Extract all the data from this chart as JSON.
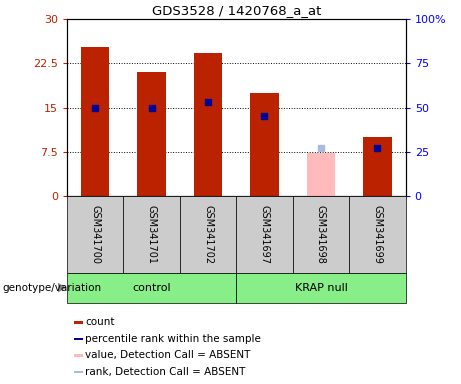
{
  "title": "GDS3528 / 1420768_a_at",
  "samples": [
    "GSM341700",
    "GSM341701",
    "GSM341702",
    "GSM341697",
    "GSM341698",
    "GSM341699"
  ],
  "count_values": [
    25.2,
    21.0,
    24.2,
    17.5,
    null,
    10.0
  ],
  "count_absent_values": [
    null,
    null,
    null,
    null,
    7.2,
    null
  ],
  "percentile_values": [
    50,
    50,
    53,
    45,
    null,
    27
  ],
  "percentile_absent_values": [
    null,
    null,
    null,
    null,
    27,
    null
  ],
  "groups": [
    {
      "label": "control",
      "start": 0,
      "end": 2
    },
    {
      "label": "KRAP null",
      "start": 3,
      "end": 5
    }
  ],
  "ylim_left": [
    0,
    30
  ],
  "ylim_right": [
    0,
    100
  ],
  "yticks_left": [
    0,
    7.5,
    15,
    22.5,
    30
  ],
  "yticks_right": [
    0,
    25,
    50,
    75,
    100
  ],
  "ytick_labels_left": [
    "0",
    "7.5",
    "15",
    "22.5",
    "30"
  ],
  "ytick_labels_right": [
    "0",
    "25",
    "50",
    "75",
    "100%"
  ],
  "bar_color_red": "#bb2200",
  "bar_color_pink": "#ffbbbb",
  "marker_color_blue": "#000099",
  "marker_color_bluelight": "#aabbdd",
  "bar_width": 0.5,
  "group_bar_color": "#88ee88",
  "sample_box_color": "#cccccc",
  "legend_items": [
    {
      "color": "#bb2200",
      "label": "count"
    },
    {
      "color": "#000099",
      "label": "percentile rank within the sample"
    },
    {
      "color": "#ffbbbb",
      "label": "value, Detection Call = ABSENT"
    },
    {
      "color": "#aabbdd",
      "label": "rank, Detection Call = ABSENT"
    }
  ],
  "genotype_label": "genotype/variation"
}
